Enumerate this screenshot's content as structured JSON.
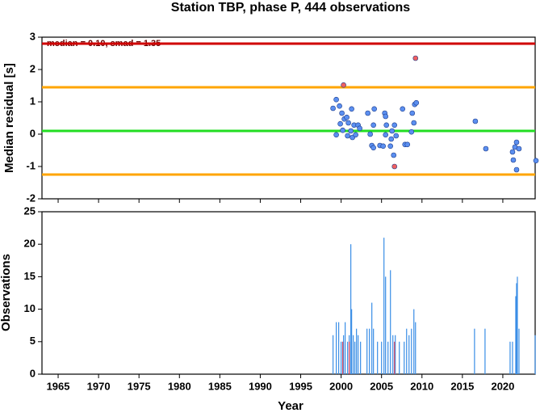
{
  "chart_data": [
    {
      "type": "scatter",
      "title": "Station TBP, phase P, 444 observations",
      "ylabel": "Median residual [s]",
      "annotation": "median = 0.10, smad = 1.35",
      "xlim": [
        1963,
        2024
      ],
      "xticks": [
        1965,
        1970,
        1975,
        1980,
        1985,
        1990,
        1995,
        2000,
        2005,
        2010,
        2015,
        2020
      ],
      "ylim": [
        -2,
        3
      ],
      "yticks": [
        -2,
        -1,
        0,
        1,
        2,
        3
      ],
      "hlines": [
        {
          "value": 2.8,
          "color": "#d00000"
        },
        {
          "value": 1.45,
          "color": "#ffa500"
        },
        {
          "value": 0.1,
          "color": "#22dd22"
        },
        {
          "value": -1.25,
          "color": "#ffa500"
        }
      ],
      "series": [
        {
          "color": "#5b8ff0",
          "x": [
            1999.0,
            1999.4,
            1999.4,
            1999.8,
            1999.9,
            2000.1,
            2000.2,
            2000.4,
            2000.7,
            2000.8,
            2000.9,
            2001.2,
            2001.3,
            2001.4,
            2001.6,
            2001.8,
            2002.1,
            2002.3,
            2003.3,
            2003.6,
            2003.8,
            2004.0,
            2004.0,
            2004.1,
            2004.8,
            2005.2,
            2005.4,
            2005.5,
            2005.5,
            2005.6,
            2006.1,
            2006.2,
            2006.3,
            2006.5,
            2006.6,
            2006.8,
            2007.6,
            2007.9,
            2008.2,
            2008.7,
            2008.8,
            2009.0,
            2009.1,
            2009.3,
            2016.6,
            2017.9,
            2021.2,
            2021.3,
            2021.5,
            2021.7,
            2021.7,
            2022.0,
            2024.1
          ],
          "values": [
            0.8,
            1.07,
            -0.02,
            0.87,
            0.32,
            0.65,
            0.12,
            0.47,
            0.52,
            -0.05,
            0.35,
            0.1,
            0.78,
            -0.1,
            0.28,
            -0.02,
            0.28,
            0.18,
            0.65,
            0,
            -0.35,
            -0.42,
            0.28,
            0.78,
            -0.35,
            -0.37,
            0.65,
            0.55,
            -0.02,
            0.28,
            -0.37,
            -0.15,
            0.1,
            -0.65,
            0.28,
            -0.05,
            0.78,
            -0.32,
            -0.32,
            0.07,
            0.65,
            0.35,
            0.92,
            0.97,
            0.4,
            -0.45,
            -0.55,
            -0.8,
            -0.4,
            -0.25,
            -1.1,
            -0.45,
            -0.82
          ]
        },
        {
          "color": "#f06060",
          "x": [
            2000.3,
            2009.2,
            2006.6
          ],
          "values": [
            1.52,
            2.35,
            -1.0
          ]
        }
      ]
    },
    {
      "type": "bar",
      "xlabel": "Year",
      "ylabel": "Observations",
      "xlim": [
        1963,
        2024
      ],
      "xticks": [
        1965,
        1970,
        1975,
        1980,
        1985,
        1990,
        1995,
        2000,
        2005,
        2010,
        2015,
        2020
      ],
      "ylim": [
        0,
        25
      ],
      "yticks": [
        0,
        5,
        10,
        15,
        20,
        25
      ],
      "series": [
        {
          "color": "#3a8ee6",
          "x": [
            1999.0,
            1999.4,
            1999.7,
            2000.0,
            2000.3,
            2000.5,
            2000.8,
            2001.0,
            2001.2,
            2001.3,
            2001.5,
            2001.7,
            2001.9,
            2002.1,
            2002.4,
            2003.2,
            2003.5,
            2003.8,
            2004.0,
            2004.5,
            2005.0,
            2005.3,
            2005.5,
            2005.8,
            2006.1,
            2006.4,
            2006.7,
            2007.2,
            2007.8,
            2008.1,
            2008.4,
            2008.7,
            2009.0,
            2009.2,
            2016.5,
            2017.8,
            2020.9,
            2021.2,
            2021.6,
            2021.7,
            2021.8,
            2022.0,
            2024.0
          ],
          "values": [
            6,
            8,
            8,
            5,
            6,
            8,
            5,
            6,
            20,
            10,
            6,
            5,
            7,
            6,
            5,
            7,
            7,
            11,
            7,
            5,
            5,
            21,
            15,
            5,
            16,
            6,
            6,
            5,
            5,
            7,
            6,
            7,
            10,
            8,
            7,
            7,
            5,
            5,
            12,
            14,
            15,
            7,
            6
          ]
        },
        {
          "color": "#d04060",
          "x": [
            2000.2,
            2001.0,
            2006.6
          ],
          "values": [
            5,
            5,
            5
          ]
        }
      ]
    }
  ]
}
